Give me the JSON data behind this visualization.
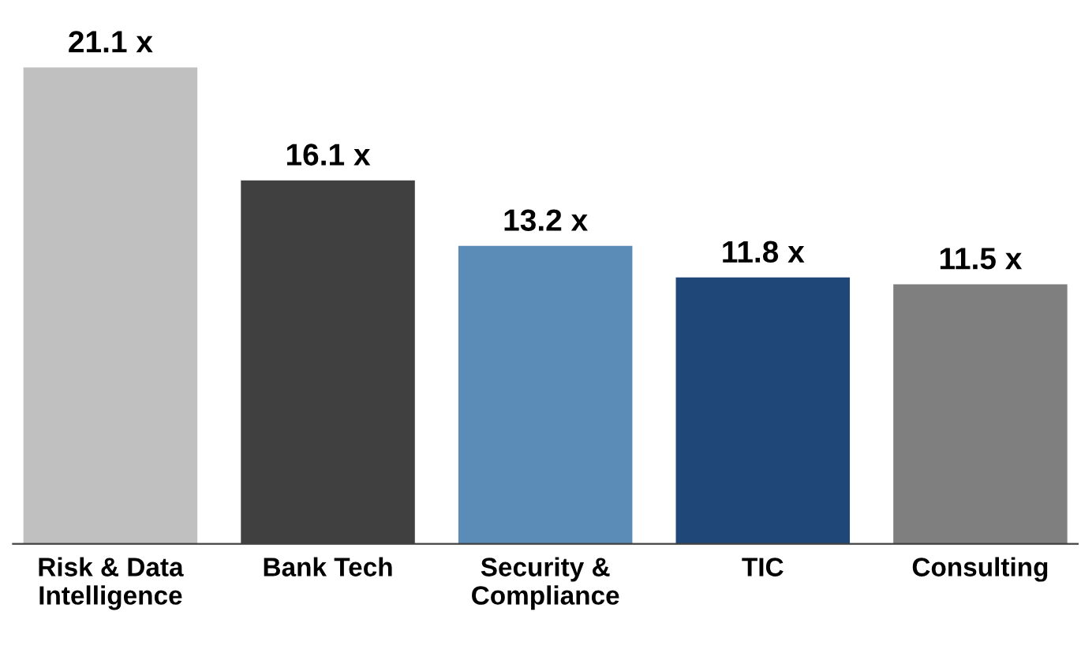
{
  "chart_data": {
    "type": "bar",
    "categories": [
      "Risk & Data\nIntelligence",
      "Bank Tech",
      "Security &\nCompliance",
      "TIC",
      "Consulting"
    ],
    "values": [
      21.1,
      16.1,
      13.2,
      11.8,
      11.5
    ],
    "value_labels": [
      "21.1 x",
      "16.1 x",
      "13.2 x",
      "11.8 x",
      "11.5 x"
    ],
    "colors": [
      "#c0c0c0",
      "#404040",
      "#5b8cb8",
      "#1f4778",
      "#7f7f7f"
    ],
    "grid": false,
    "legend": false
  }
}
